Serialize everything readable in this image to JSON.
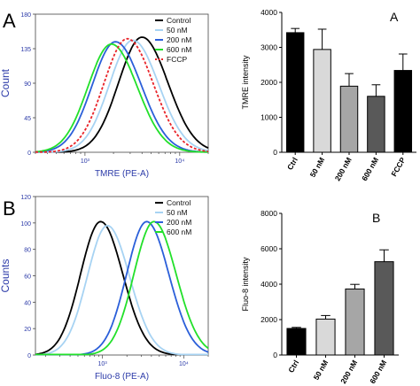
{
  "panels": {
    "A": {
      "letter": "A"
    },
    "B": {
      "letter": "B"
    }
  },
  "chart_data": [
    {
      "id": "A-hist",
      "type": "line",
      "xlabel": "TMRE (PE-A)",
      "ylabel": "Count",
      "xscale": "log",
      "xlim": [
        300,
        20000
      ],
      "ylim": [
        0,
        180
      ],
      "yticks": [
        0,
        45,
        90,
        135,
        180
      ],
      "xticks": [
        {
          "value": 1000,
          "label": "10³"
        },
        {
          "value": 10000,
          "label": "10⁴"
        }
      ],
      "legend_position": "top-right",
      "series": [
        {
          "name": "Control",
          "color": "#000000",
          "dash": false,
          "peak_x": 4000,
          "peak_y": 150
        },
        {
          "name": "50 nM",
          "color": "#a7d3f3",
          "dash": false,
          "peak_x": 3200,
          "peak_y": 146
        },
        {
          "name": "200 nM",
          "color": "#2b5fd9",
          "dash": false,
          "peak_x": 2100,
          "peak_y": 144
        },
        {
          "name": "600 nM",
          "color": "#22e02a",
          "dash": false,
          "peak_x": 1900,
          "peak_y": 141
        },
        {
          "name": "FCCP",
          "color": "#e8242a",
          "dash": true,
          "peak_x": 2800,
          "peak_y": 148
        }
      ]
    },
    {
      "id": "A-bar",
      "type": "bar",
      "title": "A",
      "ylabel": "TMRE intensity",
      "ylim": [
        0,
        4000
      ],
      "yticks": [
        0,
        1000,
        2000,
        3000,
        4000
      ],
      "categories": [
        "Ctrl",
        "50 nM",
        "200 nM",
        "600 nM",
        "FCCP"
      ],
      "values": [
        3420,
        2940,
        1890,
        1600,
        2340
      ],
      "errors": [
        120,
        580,
        360,
        330,
        470
      ],
      "bar_colors": [
        "#000000",
        "#d9d9d9",
        "#a6a6a6",
        "#595959",
        "#000000"
      ]
    },
    {
      "id": "B-hist",
      "type": "line",
      "xlabel": "Fluo-8 (PE-A)",
      "ylabel": "Counts",
      "xscale": "log",
      "xlim": [
        150,
        20000
      ],
      "ylim": [
        0,
        120
      ],
      "yticks": [
        0,
        20,
        40,
        60,
        80,
        100,
        120
      ],
      "xticks": [
        {
          "value": 1000,
          "label": "10³"
        },
        {
          "value": 10000,
          "label": "10⁴"
        }
      ],
      "legend_position": "top-right",
      "series": [
        {
          "name": "Control",
          "color": "#000000",
          "dash": false,
          "peak_x": 950,
          "peak_y": 101
        },
        {
          "name": "50 nM",
          "color": "#a7d3f3",
          "dash": false,
          "peak_x": 1150,
          "peak_y": 98
        },
        {
          "name": "200 nM",
          "color": "#2b5fd9",
          "dash": false,
          "peak_x": 3500,
          "peak_y": 101
        },
        {
          "name": "600 nM",
          "color": "#22e02a",
          "dash": false,
          "peak_x": 4300,
          "peak_y": 101
        }
      ]
    },
    {
      "id": "B-bar",
      "type": "bar",
      "title": "B",
      "ylabel": "Fluo-8 intensity",
      "ylim": [
        0,
        8000
      ],
      "yticks": [
        0,
        2000,
        4000,
        6000,
        8000
      ],
      "categories": [
        "Ctrl",
        "50 nM",
        "200 nM",
        "600 nM"
      ],
      "values": [
        1500,
        2030,
        3730,
        5270
      ],
      "errors": [
        60,
        200,
        260,
        670
      ],
      "bar_colors": [
        "#000000",
        "#d9d9d9",
        "#a6a6a6",
        "#595959"
      ]
    }
  ]
}
